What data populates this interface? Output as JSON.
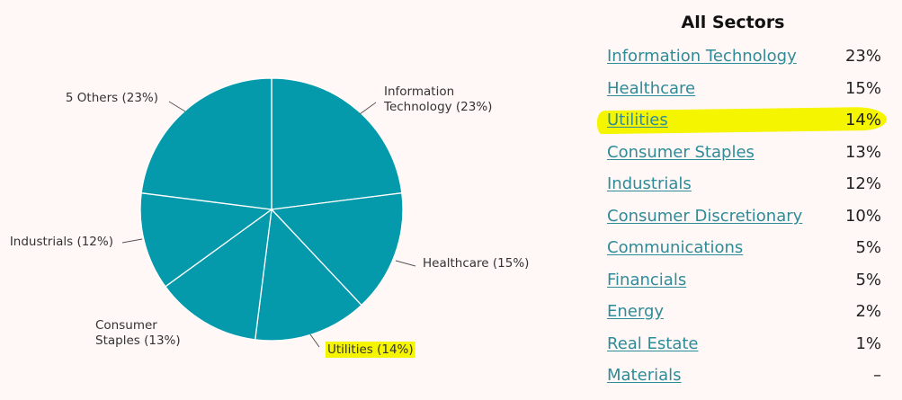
{
  "chart_data": {
    "type": "pie",
    "slices": [
      {
        "label": "Information Technology",
        "value": 23,
        "text": "Information\nTechnology (23%)",
        "anchor": "start",
        "highlight": false
      },
      {
        "label": "Healthcare",
        "value": 15,
        "text": "Healthcare (15%)",
        "anchor": "start",
        "highlight": false
      },
      {
        "label": "Utilities",
        "value": 14,
        "text": "Utilities (14%)",
        "anchor": "start",
        "highlight": true
      },
      {
        "label": "Consumer Staples",
        "value": 13,
        "text": "Consumer\nStaples (13%)",
        "anchor": "start",
        "highlight": false
      },
      {
        "label": "Industrials",
        "value": 12,
        "text": "Industrials (12%)",
        "anchor": "end",
        "highlight": false
      },
      {
        "label": "5 Others",
        "value": 23,
        "text": "5 Others (23%)",
        "anchor": "end",
        "highlight": false
      }
    ],
    "colors": {
      "slice": "#0499ab",
      "border": "#ffffff",
      "leader": "#555555",
      "highlight": "#f6f500"
    }
  },
  "table": {
    "title": "All Sectors",
    "rows": [
      {
        "name": "Information Technology",
        "pct": "23%",
        "highlight": false
      },
      {
        "name": "Healthcare",
        "pct": "15%",
        "highlight": false
      },
      {
        "name": "Utilities",
        "pct": "14%",
        "highlight": true
      },
      {
        "name": "Consumer Staples",
        "pct": "13%",
        "highlight": false
      },
      {
        "name": "Industrials",
        "pct": "12%",
        "highlight": false
      },
      {
        "name": "Consumer Discretionary",
        "pct": "10%",
        "highlight": false
      },
      {
        "name": "Communications",
        "pct": "5%",
        "highlight": false
      },
      {
        "name": "Financials",
        "pct": "5%",
        "highlight": false
      },
      {
        "name": "Energy",
        "pct": "2%",
        "highlight": false
      },
      {
        "name": "Real Estate",
        "pct": "1%",
        "highlight": false
      },
      {
        "name": "Materials",
        "pct": "–",
        "highlight": false
      }
    ],
    "link_color": "#2e8b98"
  }
}
